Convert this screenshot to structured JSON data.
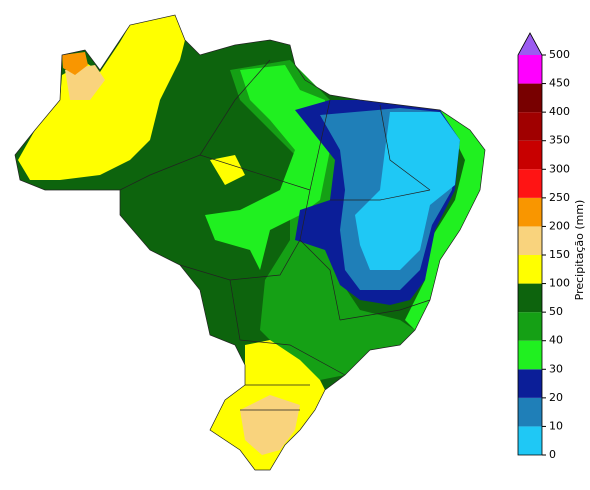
{
  "colorbar": {
    "label": "Precipitação (mm)",
    "levels": [
      0,
      10,
      20,
      30,
      40,
      50,
      100,
      150,
      200,
      250,
      300,
      350,
      400,
      450,
      500
    ],
    "colors": [
      "#1fc8f5",
      "#1f7fb8",
      "#0b1e98",
      "#20f020",
      "#15a015",
      "#0d640d",
      "#ffff00",
      "#f9d37d",
      "#f99600",
      "#ff1414",
      "#c80000",
      "#a00000",
      "#780000",
      "#ff00ff"
    ],
    "extend_color": "#9b5cf0"
  }
}
